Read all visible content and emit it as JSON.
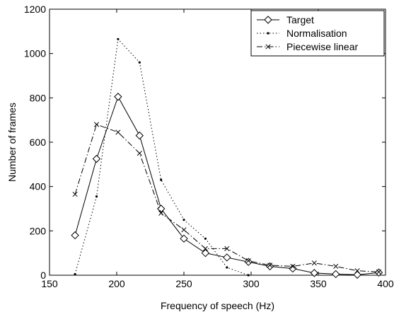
{
  "chart_data": {
    "type": "line",
    "title": "",
    "xlabel": "Frequency of speech (Hz)",
    "ylabel": "Number of frames",
    "xlim": [
      150,
      400
    ],
    "ylim": [
      0,
      1200
    ],
    "xticks": [
      150,
      200,
      250,
      300,
      350,
      400
    ],
    "yticks": [
      0,
      200,
      400,
      600,
      800,
      1000,
      1200
    ],
    "grid": false,
    "legend_position": "top-right",
    "series": [
      {
        "name": "Target",
        "style": "solid-diamond",
        "color": "#000000",
        "x": [
          169,
          185,
          201,
          217,
          233,
          250,
          266,
          282,
          298,
          314,
          331,
          347,
          363,
          379,
          395
        ],
        "y": [
          180,
          525,
          805,
          630,
          300,
          165,
          100,
          80,
          60,
          40,
          30,
          10,
          5,
          2,
          12
        ]
      },
      {
        "name": "Normalisation",
        "style": "dotted-point",
        "color": "#000000",
        "x": [
          169,
          185,
          201,
          217,
          233,
          250,
          266,
          282,
          298
        ],
        "y": [
          5,
          355,
          1065,
          960,
          430,
          250,
          165,
          35,
          0
        ]
      },
      {
        "name": "Piecewise linear",
        "style": "dashdot-x",
        "color": "#000000",
        "x": [
          169,
          185,
          201,
          217,
          233,
          250,
          266,
          282,
          298,
          314,
          331,
          347,
          363,
          379,
          395
        ],
        "y": [
          365,
          680,
          645,
          550,
          280,
          205,
          120,
          120,
          65,
          45,
          40,
          55,
          40,
          20,
          15
        ]
      }
    ]
  }
}
